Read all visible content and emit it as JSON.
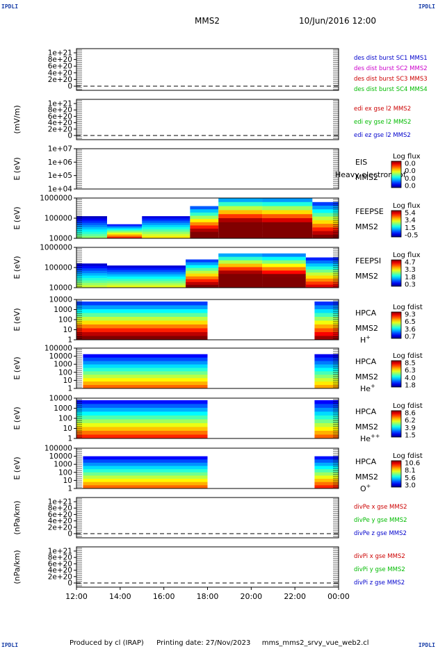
{
  "header": {
    "corner_left_top": "IPDLI",
    "corner_right_top": "IPDLI",
    "corner_left_bottom": "IPDLI",
    "corner_right_bottom": "IPDLI",
    "spacecraft": "MMS2",
    "datetime": "10/Jun/2016 12:00"
  },
  "footer": {
    "produced_by": "Produced by cl (IRAP)",
    "printing_date": "Printing date: 27/Nov/2023",
    "file_name": "mms_mms2_srvy_vue_web2.cl"
  },
  "colors": {
    "black": "#000000",
    "blue": "#0000cc",
    "red": "#cc0000",
    "magenta": "#cc00cc",
    "green": "#00bb00",
    "corner_blue": "#1a3fa8"
  },
  "chart_data": {
    "type": "multi-panel time series / spectrograms",
    "x_ticks": [
      "12:00",
      "14:00",
      "16:00",
      "18:00",
      "20:00",
      "22:00",
      "00:00"
    ],
    "x_range_hours": [
      12,
      24
    ],
    "panels": [
      {
        "id": "p1",
        "type": "line",
        "ylabel": "",
        "yticks": [
          "1e+21",
          "8e+20",
          "6e+20",
          "4e+20",
          "2e+20",
          "0"
        ],
        "dashed_zero": true,
        "legend": [
          {
            "text": "des dist burst SC1 MMS1",
            "color": "#0000cc"
          },
          {
            "text": "des dist burst SC2 MMS2",
            "color": "#cc00cc"
          },
          {
            "text": "des dist burst SC3 MMS3",
            "color": "#cc0000"
          },
          {
            "text": "des dist burst SC4 MMS4",
            "color": "#00bb00"
          }
        ]
      },
      {
        "id": "p2",
        "type": "line",
        "ylabel": "(mV/m)",
        "yticks": [
          "1e+21",
          "8e+20",
          "6e+20",
          "4e+20",
          "2e+20",
          "0"
        ],
        "dashed_zero": true,
        "legend": [
          {
            "text": "edi ex gse l2 MMS2",
            "color": "#cc0000"
          },
          {
            "text": "edi ey gse l2 MMS2",
            "color": "#00bb00"
          },
          {
            "text": "edi ez gse l2 MMS2",
            "color": "#0000cc"
          }
        ]
      },
      {
        "id": "p3",
        "type": "spectrogram",
        "ylabel": "E (eV)",
        "yticks": [
          "1e+07",
          "1e+06",
          "1e+05",
          "1e+04"
        ],
        "instrument": "EIS",
        "sc": "MMS2",
        "species": "",
        "overlay": "Heavy electron tof",
        "cbar_title": "Log flux",
        "cbar_ticks": [
          "0.0",
          "0.0",
          "0.0",
          "0.0"
        ],
        "segments": []
      },
      {
        "id": "p4",
        "type": "spectrogram",
        "ylabel": "E (eV)",
        "yticks": [
          "1000000",
          "100000",
          "10000"
        ],
        "instrument": "FEEPSE",
        "sc": "MMS2",
        "species": "",
        "cbar_title": "Log flux",
        "cbar_ticks": [
          "5.4",
          "3.4",
          "1.5",
          "-0.5"
        ],
        "segments": [
          {
            "t0": 12.0,
            "t1": 13.4,
            "top": 0.55,
            "level": 0.05
          },
          {
            "t0": 13.4,
            "t1": 15.0,
            "top": 0.35,
            "level": 0.3
          },
          {
            "t0": 15.0,
            "t1": 17.2,
            "top": 0.55,
            "level": 0.15
          },
          {
            "t0": 17.2,
            "t1": 18.5,
            "top": 0.8,
            "level": 0.55
          },
          {
            "t0": 18.5,
            "t1": 20.5,
            "top": 1.0,
            "level": 0.8
          },
          {
            "t0": 20.5,
            "t1": 22.8,
            "top": 1.0,
            "level": 0.75
          },
          {
            "t0": 22.8,
            "t1": 24.0,
            "top": 0.9,
            "level": 0.45
          }
        ]
      },
      {
        "id": "p5",
        "type": "spectrogram",
        "ylabel": "E (eV)",
        "yticks": [
          "1000000",
          "100000",
          "10000"
        ],
        "instrument": "FEEPSI",
        "sc": "MMS2",
        "species": "",
        "cbar_title": "Log flux",
        "cbar_ticks": [
          "4.7",
          "3.3",
          "1.8",
          "0.3"
        ],
        "segments": [
          {
            "t0": 12.0,
            "t1": 13.4,
            "top": 0.6,
            "level": 0.1
          },
          {
            "t0": 13.4,
            "t1": 17.0,
            "top": 0.55,
            "level": 0.12
          },
          {
            "t0": 17.0,
            "t1": 18.5,
            "top": 0.7,
            "level": 0.45
          },
          {
            "t0": 18.5,
            "t1": 20.5,
            "top": 0.85,
            "level": 0.8
          },
          {
            "t0": 20.5,
            "t1": 22.5,
            "top": 0.85,
            "level": 0.7
          },
          {
            "t0": 22.5,
            "t1": 24.0,
            "top": 0.75,
            "level": 0.35
          }
        ]
      },
      {
        "id": "p6",
        "type": "spectrogram",
        "ylabel": "E (eV)",
        "yticks": [
          "10000",
          "1000",
          "100",
          "10",
          "1"
        ],
        "instrument": "HPCA",
        "sc": "MMS2",
        "species": "H",
        "species_sup": "+",
        "cbar_title": "Log fdist",
        "cbar_ticks": [
          "9.3",
          "6.5",
          "3.6",
          "0.7"
        ],
        "segments": [
          {
            "t0": 12.0,
            "t1": 18.0,
            "top": 0.95,
            "level": 0.45
          },
          {
            "t0": 22.9,
            "t1": 24.0,
            "top": 0.95,
            "level": 0.4
          }
        ]
      },
      {
        "id": "p7",
        "type": "spectrogram",
        "ylabel": "E (eV)",
        "yticks": [
          "100000",
          "10000",
          "1000",
          "100",
          "10",
          "1"
        ],
        "instrument": "HPCA",
        "sc": "MMS2",
        "species": "He",
        "species_sup": "+",
        "cbar_title": "Log fdist",
        "cbar_ticks": [
          "8.5",
          "6.3",
          "4.0",
          "1.8"
        ],
        "segments": [
          {
            "t0": 12.3,
            "t1": 18.0,
            "top": 0.85,
            "level": 0.25
          },
          {
            "t0": 22.9,
            "t1": 24.0,
            "top": 0.85,
            "level": 0.2
          }
        ]
      },
      {
        "id": "p8",
        "type": "spectrogram",
        "ylabel": "E (eV)",
        "yticks": [
          "10000",
          "1000",
          "100",
          "10",
          "1"
        ],
        "instrument": "HPCA",
        "sc": "MMS2",
        "species": "He",
        "species_sup": "++",
        "cbar_title": "Log fdist",
        "cbar_ticks": [
          "8.6",
          "6.2",
          "3.9",
          "1.5"
        ],
        "segments": [
          {
            "t0": 12.0,
            "t1": 18.0,
            "top": 0.95,
            "level": 0.3
          },
          {
            "t0": 22.9,
            "t1": 24.0,
            "top": 0.95,
            "level": 0.25
          }
        ]
      },
      {
        "id": "p9",
        "type": "spectrogram",
        "ylabel": "E (eV)",
        "yticks": [
          "100000",
          "10000",
          "1000",
          "100",
          "10",
          "1"
        ],
        "instrument": "HPCA",
        "sc": "MMS2",
        "species": "O",
        "species_sup": "+",
        "cbar_title": "Log fdist",
        "cbar_ticks": [
          "10.6",
          "8.1",
          "5.6",
          "3.0"
        ],
        "segments": [
          {
            "t0": 12.3,
            "t1": 18.0,
            "top": 0.8,
            "level": 0.25
          },
          {
            "t0": 22.9,
            "t1": 24.0,
            "top": 0.8,
            "level": 0.3
          }
        ]
      },
      {
        "id": "p10",
        "type": "line",
        "ylabel": "(nPa/km)",
        "yticks": [
          "1e+21",
          "8e+20",
          "6e+20",
          "4e+20",
          "2e+20",
          "0"
        ],
        "dashed_zero": true,
        "legend": [
          {
            "text": "divPe x gse MMS2",
            "color": "#cc0000"
          },
          {
            "text": "divPe y gse MMS2",
            "color": "#00bb00"
          },
          {
            "text": "divPe z gse MMS2",
            "color": "#0000cc"
          }
        ]
      },
      {
        "id": "p11",
        "type": "line",
        "ylabel": "(nPa/km)",
        "yticks": [
          "1e+21",
          "8e+20",
          "6e+20",
          "4e+20",
          "2e+20",
          "0"
        ],
        "dashed_zero": true,
        "legend": [
          {
            "text": "divPi x gse MMS2",
            "color": "#cc0000"
          },
          {
            "text": "divPi y gse MMS2",
            "color": "#00bb00"
          },
          {
            "text": "divPi z gse MMS2",
            "color": "#0000cc"
          }
        ]
      }
    ]
  }
}
